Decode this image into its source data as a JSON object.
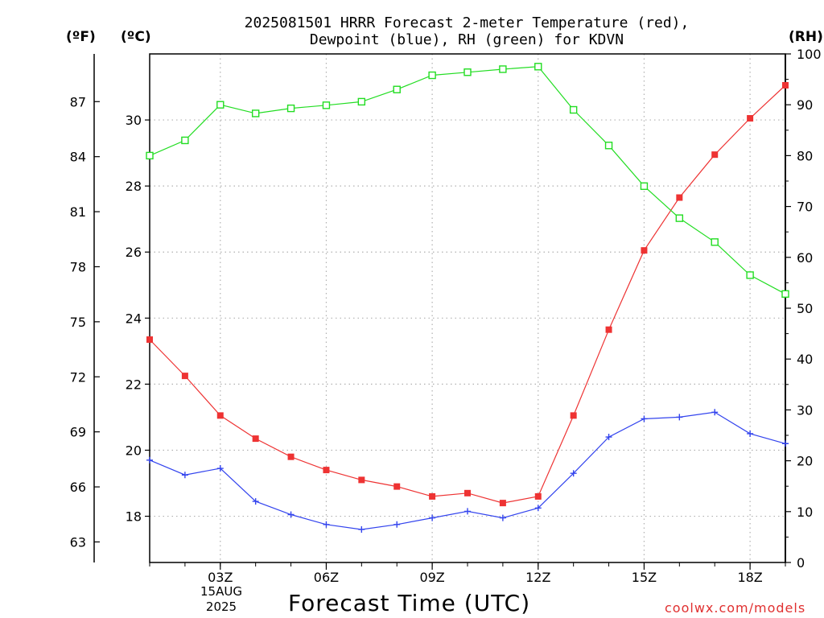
{
  "title_line1": "2025081501 HRRR Forecast 2-meter Temperature (red),",
  "title_line2": "Dewpoint (blue), RH (green) for KDVN",
  "unit_f": "(ºF)",
  "unit_c": "(ºC)",
  "unit_rh": "(RH)",
  "xlabel": "Forecast Time (UTC)",
  "date_day": "15AUG",
  "date_year": "2025",
  "credit": "coolwx.com/models",
  "colors": {
    "temperature": "#ee3333",
    "dewpoint": "#3344ee",
    "rh": "#22dd22",
    "grid": "#b0b0b0"
  },
  "chart_data": {
    "type": "line",
    "title": "2025081501 HRRR Forecast 2-meter Temperature (red), Dewpoint (blue), RH (green) for KDVN",
    "xlabel": "Forecast Time (UTC)",
    "x": [
      "01Z",
      "02Z",
      "03Z",
      "04Z",
      "05Z",
      "06Z",
      "07Z",
      "08Z",
      "09Z",
      "10Z",
      "11Z",
      "12Z",
      "13Z",
      "14Z",
      "15Z",
      "16Z",
      "17Z",
      "18Z",
      "19Z"
    ],
    "x_tick_labels": [
      "03Z",
      "06Z",
      "09Z",
      "12Z",
      "15Z",
      "18Z"
    ],
    "y_left_celsius": {
      "ticks": [
        18,
        20,
        22,
        24,
        26,
        28,
        30
      ],
      "ylim": [
        16.6,
        32.0
      ]
    },
    "y_left_fahrenheit": {
      "ticks": [
        63,
        66,
        69,
        72,
        75,
        78,
        81,
        84,
        87
      ]
    },
    "y_right_rh": {
      "ticks": [
        0,
        10,
        20,
        30,
        40,
        50,
        60,
        70,
        80,
        90,
        100
      ],
      "ylim": [
        0,
        100
      ]
    },
    "grid": true,
    "series": [
      {
        "name": "Temperature (red)",
        "axis": "celsius",
        "marker": "filled-square",
        "values": [
          23.35,
          22.25,
          21.05,
          20.35,
          19.8,
          19.4,
          19.1,
          18.9,
          18.6,
          18.7,
          18.4,
          18.6,
          21.05,
          23.65,
          26.05,
          27.65,
          28.95,
          30.05,
          31.05
        ]
      },
      {
        "name": "Dewpoint (blue)",
        "axis": "celsius",
        "marker": "plus",
        "values": [
          19.7,
          19.25,
          19.45,
          18.45,
          18.05,
          17.75,
          17.6,
          17.75,
          17.95,
          18.15,
          17.95,
          18.25,
          19.3,
          20.4,
          20.95,
          21.0,
          21.15,
          20.5,
          20.2
        ]
      },
      {
        "name": "RH (green)",
        "axis": "rh",
        "marker": "open-square",
        "values": [
          80,
          83,
          90,
          88.3,
          89.3,
          89.9,
          90.6,
          93,
          95.8,
          96.4,
          97,
          97.5,
          89,
          82,
          74,
          67.7,
          63,
          56.5,
          52.8
        ]
      }
    ]
  }
}
